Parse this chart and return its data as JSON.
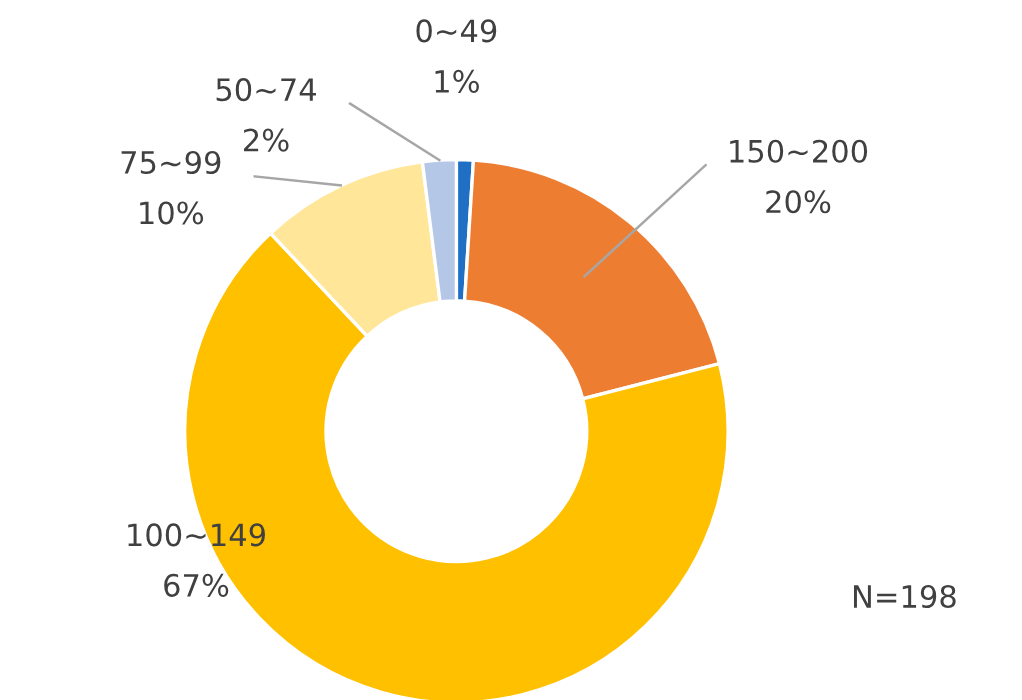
{
  "chart_data": {
    "type": "donut",
    "categories": [
      "0~49",
      "150~200",
      "100~149",
      "75~99",
      "50~74"
    ],
    "values": [
      1,
      20,
      67,
      10,
      2
    ],
    "value_labels": [
      "1%",
      "20%",
      "67%",
      "10%",
      "2%"
    ],
    "colors": [
      "#1f6fc5",
      "#ed7d31",
      "#ffc000",
      "#ffe699",
      "#b4c7e7"
    ],
    "annotations": [
      "N=198"
    ],
    "legend": false
  }
}
